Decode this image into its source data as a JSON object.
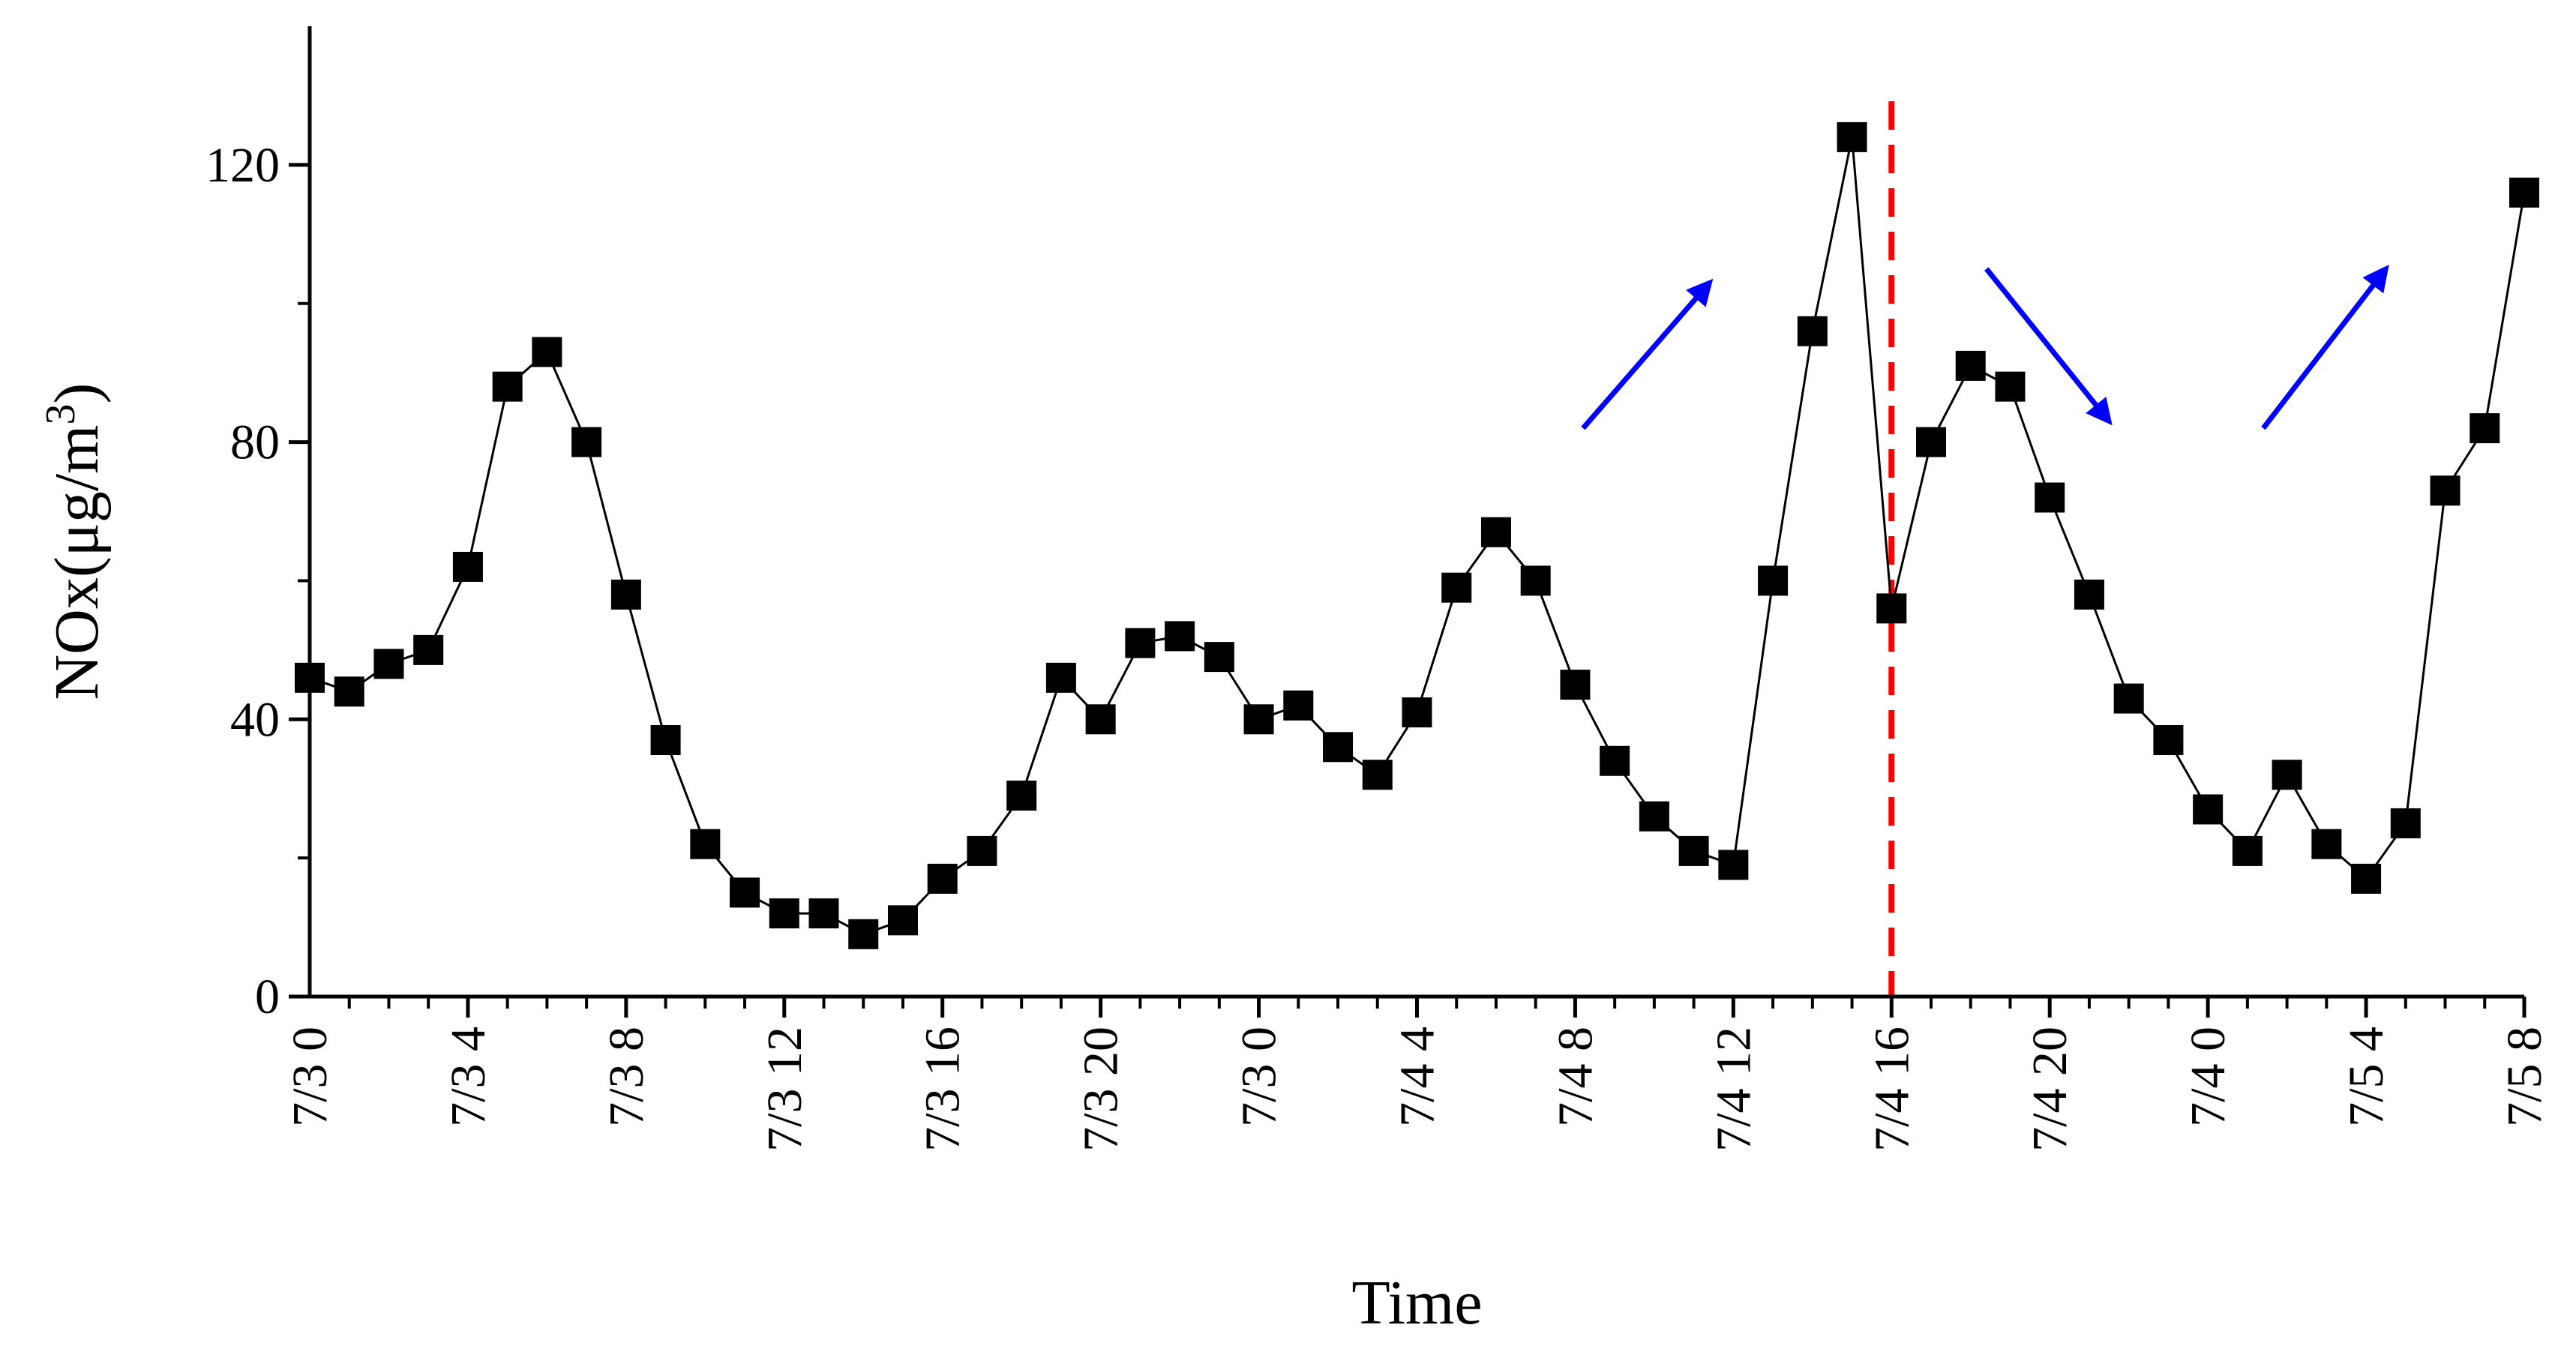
{
  "chart_data": {
    "type": "line",
    "xlabel": "Time",
    "ylabel": "NOx(μg/m",
    "ylabel_superscript": "3",
    "ylabel_close": ")",
    "ylim": [
      0,
      140
    ],
    "yticks": [
      0,
      40,
      80,
      120
    ],
    "xlim": [
      0,
      56
    ],
    "xtick_labels": [
      "7/3 0",
      "7/3 4",
      "7/3 8",
      "7/3 12",
      "7/3 16",
      "7/3 20",
      "7/3 0",
      "7/4 4",
      "7/4 8",
      "7/4 12",
      "7/4 16",
      "7/4 20",
      "7/4 0",
      "7/5 4",
      "7/5 8"
    ],
    "grid": false,
    "legend": "none",
    "marker": "square",
    "series": [
      {
        "color": "#000000",
        "x": [
          0,
          1,
          2,
          3,
          4,
          5,
          6,
          7,
          8,
          9,
          10,
          11,
          12,
          13,
          14,
          15,
          16,
          17,
          18,
          19,
          20,
          21,
          22,
          23,
          24,
          25,
          26,
          27,
          28,
          29,
          30,
          31,
          32,
          33,
          34,
          35,
          36,
          37,
          38,
          39,
          40,
          41,
          42,
          43,
          44,
          45,
          46,
          47,
          48,
          49,
          50,
          51,
          52,
          53,
          54,
          55,
          56
        ],
        "values": [
          46,
          44,
          48,
          50,
          62,
          88,
          93,
          80,
          58,
          37,
          22,
          15,
          12,
          12,
          9,
          11,
          17,
          21,
          29,
          46,
          40,
          51,
          52,
          49,
          40,
          42,
          36,
          32,
          41,
          59,
          67,
          60,
          45,
          34,
          26,
          21,
          19,
          60,
          96,
          124,
          56,
          80,
          91,
          88,
          72,
          58,
          43,
          37,
          27,
          21,
          32,
          22,
          17,
          25,
          73,
          82,
          116
        ]
      }
    ],
    "annotations": [
      {
        "type": "vline",
        "x": 40,
        "color": "#ff0000",
        "style": "dashed"
      },
      {
        "type": "arrow",
        "from": [
          32.2,
          82
        ],
        "to": [
          35.4,
          103
        ],
        "color": "#0000ff"
      },
      {
        "type": "arrow",
        "from": [
          42.4,
          105
        ],
        "to": [
          45.5,
          83
        ],
        "color": "#0000ff"
      },
      {
        "type": "arrow",
        "from": [
          49.4,
          82
        ],
        "to": [
          52.5,
          105
        ],
        "color": "#0000ff"
      }
    ]
  }
}
